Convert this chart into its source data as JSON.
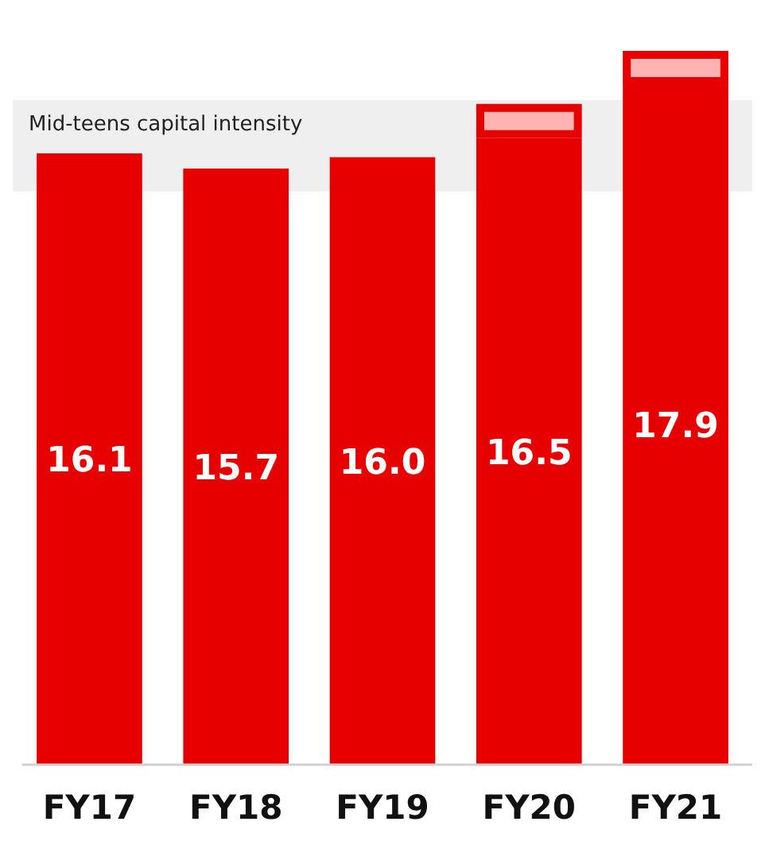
{
  "chart_data": {
    "type": "bar",
    "categories": [
      "FY17",
      "FY18",
      "FY19",
      "FY20",
      "FY21"
    ],
    "stacked": true,
    "series": [
      {
        "color": "#e60000",
        "values": [
          16.1,
          15.7,
          16.0,
          16.5,
          17.9
        ],
        "value_labels": [
          "16.1",
          "15.7",
          "16.0",
          "16.5",
          "17.9"
        ]
      },
      {
        "color": "#ffb3b3",
        "values": [
          null,
          null,
          null,
          0.9,
          0.9
        ]
      }
    ],
    "bands": [
      {
        "axis": "y",
        "from": 15.1,
        "to": 17.5,
        "label": "Mid-teens capital intensity",
        "color": "#efefef"
      }
    ]
  }
}
